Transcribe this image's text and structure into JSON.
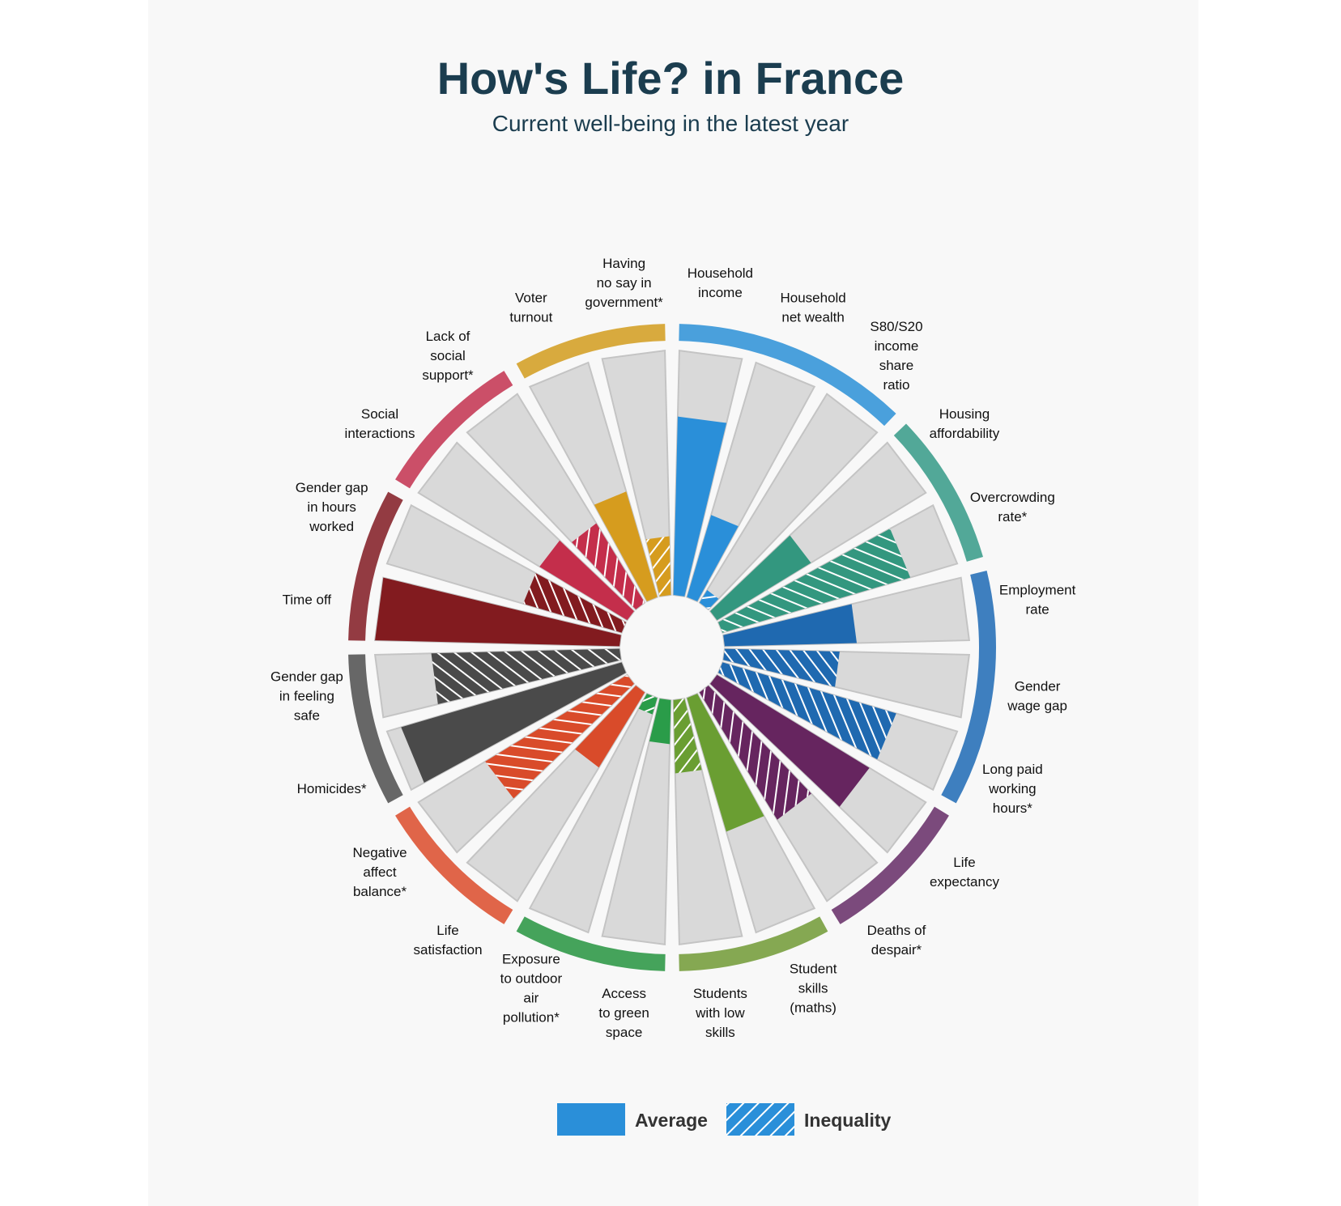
{
  "title": "How's Life? in France",
  "subtitle": "Current well-being in the latest year",
  "legend": {
    "average": "Average",
    "inequality": "Inequality",
    "color": "#2a8fd9"
  },
  "chart_data": {
    "type": "radial-bar",
    "title": "How's Life? in France",
    "subtitle": "Current well-being in the latest year",
    "value_range": [
      0,
      1
    ],
    "background_color": "#d9d9d9",
    "dimensions": [
      {
        "name": "income",
        "ring_color": "#4aa0dc",
        "indicators": [
          {
            "label": [
              "Household",
              "income"
            ],
            "value": 0.73,
            "type": "average",
            "color": "#2a8fd9"
          },
          {
            "label": [
              "Household",
              "net wealth"
            ],
            "value": 0.35,
            "type": "average",
            "color": "#2a8fd9"
          },
          {
            "label": [
              "S80/S20",
              "income",
              "share",
              "ratio"
            ],
            "value": 0.06,
            "type": "inequality",
            "color": "#2a8fd9"
          }
        ]
      },
      {
        "name": "housing",
        "ring_color": "#52a898",
        "indicators": [
          {
            "label": [
              "Housing",
              "affordability"
            ],
            "value": 0.45,
            "type": "average",
            "color": "#33977f"
          },
          {
            "label": [
              "Overcrowding",
              "rate*"
            ],
            "value": 0.8,
            "type": "inequality",
            "color": "#33977f"
          }
        ]
      },
      {
        "name": "work",
        "ring_color": "#3e7fbf",
        "indicators": [
          {
            "label": [
              "Employment",
              "rate"
            ],
            "value": 0.54,
            "type": "average",
            "color": "#1f69b0"
          },
          {
            "label": [
              "Gender",
              "wage gap"
            ],
            "value": 0.47,
            "type": "inequality",
            "color": "#1f69b0"
          },
          {
            "label": [
              "Long paid",
              "working",
              "hours*"
            ],
            "value": 0.74,
            "type": "inequality",
            "color": "#1f69b0"
          }
        ]
      },
      {
        "name": "health",
        "ring_color": "#7b4a7c",
        "indicators": [
          {
            "label": [
              "Life",
              "expectancy"
            ],
            "value": 0.73,
            "type": "average",
            "color": "#66255f"
          },
          {
            "label": [
              "Deaths of",
              "despair*"
            ],
            "value": 0.61,
            "type": "inequality",
            "color": "#66255f"
          }
        ]
      },
      {
        "name": "knowledge",
        "ring_color": "#85a852",
        "indicators": [
          {
            "label": [
              "Student",
              "skills",
              "(maths)"
            ],
            "value": 0.57,
            "type": "average",
            "color": "#6a9e32"
          },
          {
            "label": [
              "Students",
              "with low",
              "skills"
            ],
            "value": 0.3,
            "type": "inequality",
            "color": "#6a9e32"
          }
        ]
      },
      {
        "name": "environment",
        "ring_color": "#45a35b",
        "indicators": [
          {
            "label": [
              "Access",
              "to green",
              "space"
            ],
            "value": 0.18,
            "type": "average",
            "color": "#2a9c49"
          },
          {
            "label": [
              "Exposure",
              "to outdoor",
              "air",
              "pollution*"
            ],
            "value": 0.07,
            "type": "inequality",
            "color": "#2a9c49"
          }
        ]
      },
      {
        "name": "subjective",
        "ring_color": "#e06549",
        "indicators": [
          {
            "label": [
              "Life",
              "satisfaction"
            ],
            "value": 0.36,
            "type": "average",
            "color": "#d94b2a"
          },
          {
            "label": [
              "Negative",
              "affect",
              "balance*"
            ],
            "value": 0.68,
            "type": "inequality",
            "color": "#d94b2a"
          }
        ]
      },
      {
        "name": "safety",
        "ring_color": "#676767",
        "indicators": [
          {
            "label": [
              "Homicides*"
            ],
            "value": 0.94,
            "type": "average",
            "color": "#4a4a4a"
          },
          {
            "label": [
              "Gender gap",
              "in feeling",
              "safe"
            ],
            "value": 0.77,
            "type": "inequality",
            "color": "#4a4a4a"
          }
        ]
      },
      {
        "name": "work-life",
        "ring_color": "#933b42",
        "indicators": [
          {
            "label": [
              "Time off"
            ],
            "value": 1.0,
            "type": "average",
            "color": "#821b1f"
          },
          {
            "label": [
              "Gender gap",
              "in hours",
              "worked"
            ],
            "value": 0.42,
            "type": "inequality",
            "color": "#821b1f"
          }
        ]
      },
      {
        "name": "social",
        "ring_color": "#cb4f68",
        "indicators": [
          {
            "label": [
              "Social",
              "interactions"
            ],
            "value": 0.42,
            "type": "average",
            "color": "#c42e4b"
          },
          {
            "label": [
              "Lack of",
              "social",
              "support*"
            ],
            "value": 0.38,
            "type": "inequality",
            "color": "#c42e4b"
          }
        ]
      },
      {
        "name": "civic",
        "ring_color": "#d8aa3e",
        "indicators": [
          {
            "label": [
              "Voter",
              "turnout"
            ],
            "value": 0.45,
            "type": "average",
            "color": "#d69c1e"
          },
          {
            "label": [
              "Having",
              "no say in",
              "government*"
            ],
            "value": 0.24,
            "type": "inequality",
            "color": "#d69c1e"
          }
        ]
      }
    ]
  }
}
